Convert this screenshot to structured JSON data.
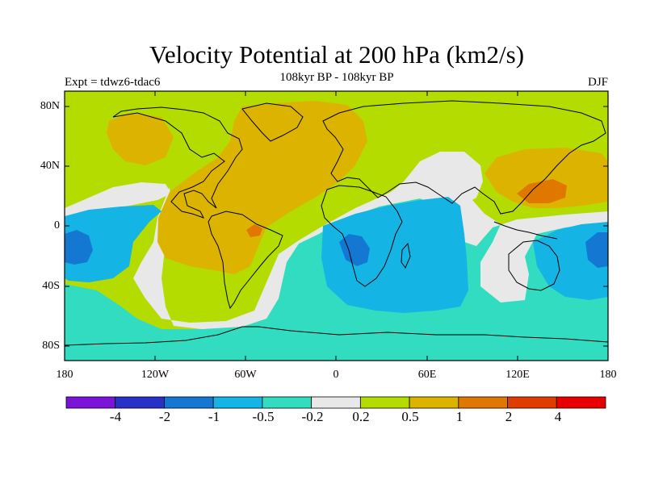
{
  "title": "Velocity Potential at 200 hPa (km2/s)",
  "subtitle": "108kyr BP - 108kyr BP",
  "left_label": "Expt = tdwz6-tdac6",
  "right_label": "DJF",
  "lat_ticks": [
    "80N",
    "40N",
    "0",
    "40S",
    "80S"
  ],
  "lon_ticks": [
    "180",
    "120W",
    "60W",
    "0",
    "60E",
    "120E",
    "180"
  ],
  "colorbar": {
    "colors": [
      "#7b14d8",
      "#2830c8",
      "#1478d2",
      "#14b4e4",
      "#32dcc0",
      "#e8e8e8",
      "#b4dc00",
      "#dcb400",
      "#e07800",
      "#e03c00",
      "#e80000"
    ],
    "labels": [
      "-4",
      "-2",
      "-1",
      "-0.5",
      "-0.2",
      "0.2",
      "0.5",
      "1",
      "2",
      "4"
    ]
  },
  "map_colors": {
    "pos_weak": "#b4dc00",
    "pos_mid": "#dcb400",
    "pos_strong": "#e07800",
    "neutral": "#e8e8e8",
    "neg_weak": "#32dcc0",
    "neg_mid": "#14b4e4",
    "neg_strong": "#1478d2"
  }
}
